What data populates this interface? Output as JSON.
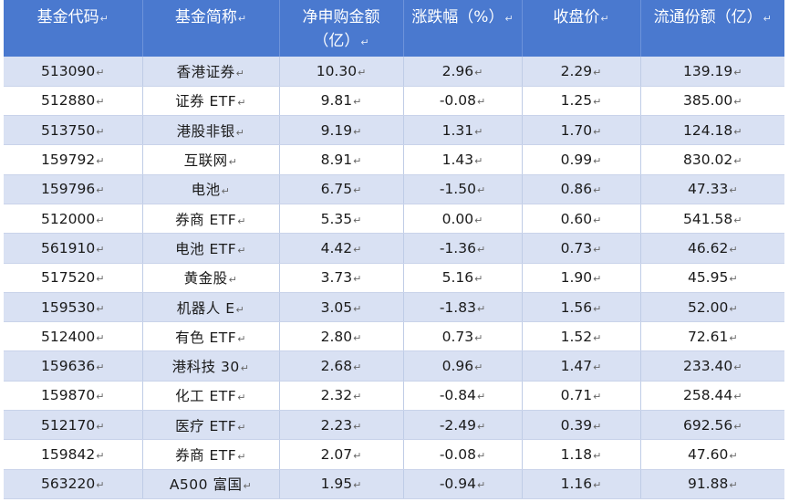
{
  "columns": [
    {
      "label": "基金代码"
    },
    {
      "label": "基金简称"
    },
    {
      "label": "净申购金额",
      "sub": "（亿）"
    },
    {
      "label": "涨跌幅（%）"
    },
    {
      "label": "收盘价"
    },
    {
      "label": "流通份额（亿）"
    }
  ],
  "cell_mark": "↵",
  "rows": [
    {
      "code": "513090",
      "name": "香港证券",
      "net": "10.30",
      "chg": "2.96",
      "close": "2.29",
      "shares": "139.19"
    },
    {
      "code": "512880",
      "name": "证券 ETF",
      "net": "9.81",
      "chg": "-0.08",
      "close": "1.25",
      "shares": "385.00"
    },
    {
      "code": "513750",
      "name": "港股非银",
      "net": "9.19",
      "chg": "1.31",
      "close": "1.70",
      "shares": "124.18"
    },
    {
      "code": "159792",
      "name": "互联网",
      "net": "8.91",
      "chg": "1.43",
      "close": "0.99",
      "shares": "830.02"
    },
    {
      "code": "159796",
      "name": "电池",
      "net": "6.75",
      "chg": "-1.50",
      "close": "0.86",
      "shares": "47.33"
    },
    {
      "code": "512000",
      "name": "券商 ETF",
      "net": "5.35",
      "chg": "0.00",
      "close": "0.60",
      "shares": "541.58"
    },
    {
      "code": "561910",
      "name": "电池 ETF",
      "net": "4.42",
      "chg": "-1.36",
      "close": "0.73",
      "shares": "46.62"
    },
    {
      "code": "517520",
      "name": "黄金股",
      "net": "3.73",
      "chg": "5.16",
      "close": "1.90",
      "shares": "45.95"
    },
    {
      "code": "159530",
      "name": "机器人 E",
      "net": "3.05",
      "chg": "-1.83",
      "close": "1.56",
      "shares": "52.00"
    },
    {
      "code": "512400",
      "name": "有色 ETF",
      "net": "2.80",
      "chg": "0.73",
      "close": "1.52",
      "shares": "72.61"
    },
    {
      "code": "159636",
      "name": "港科技 30",
      "net": "2.68",
      "chg": "0.96",
      "close": "1.47",
      "shares": "233.40"
    },
    {
      "code": "159870",
      "name": "化工 ETF",
      "net": "2.32",
      "chg": "-0.84",
      "close": "0.71",
      "shares": "258.44"
    },
    {
      "code": "512170",
      "name": "医疗 ETF",
      "net": "2.23",
      "chg": "-2.49",
      "close": "0.39",
      "shares": "692.56"
    },
    {
      "code": "159842",
      "name": "券商 ETF",
      "net": "2.07",
      "chg": "-0.08",
      "close": "1.18",
      "shares": "47.60"
    },
    {
      "code": "563220",
      "name": "A500 富国",
      "net": "1.95",
      "chg": "-0.94",
      "close": "1.16",
      "shares": "91.88"
    }
  ]
}
